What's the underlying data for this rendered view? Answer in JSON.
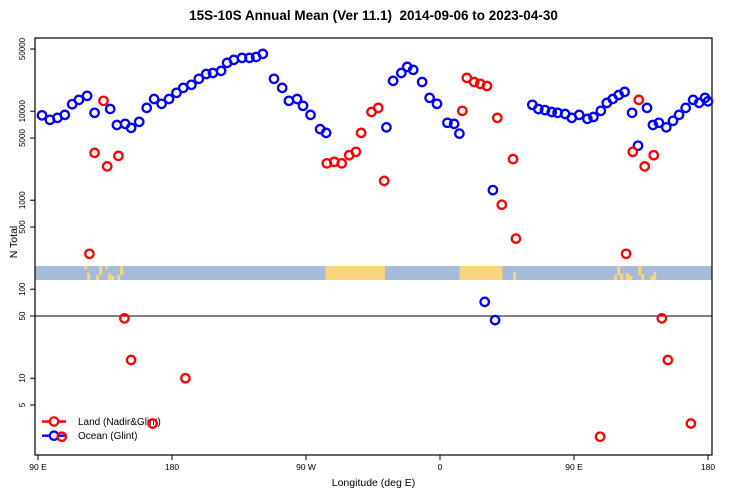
{
  "chart_data": {
    "type": "scatter",
    "title": "15S-10S Annual Mean (Ver 11.1)  2014-09-06 to 2023-04-30",
    "xlabel": "Longitude (deg E)",
    "ylabel": "N Total",
    "x_axis": {
      "description": "longitude axis spanning 450 degrees eastward starting at 90E",
      "range_deg": [
        0,
        450
      ],
      "ticks": [
        {
          "offset_deg": 0,
          "label": "90 E"
        },
        {
          "offset_deg": 90,
          "label": "180"
        },
        {
          "offset_deg": 180,
          "label": "90 W"
        },
        {
          "offset_deg": 270,
          "label": "0"
        },
        {
          "offset_deg": 360,
          "label": "90 E"
        },
        {
          "offset_deg": 450,
          "label": "180"
        }
      ]
    },
    "y_axis": {
      "scale": "log10",
      "tick_values": [
        5,
        10,
        50,
        100,
        500,
        1000,
        5000,
        10000,
        50000
      ],
      "tick_labels": [
        "5",
        "10",
        "50",
        "100",
        "500",
        "1000",
        "5000",
        "10000",
        "50000"
      ],
      "range": [
        1.3,
        65000
      ]
    },
    "reference_line": {
      "value": 50,
      "color": "#000000"
    },
    "land_ocean_strip": {
      "ocean_color": "#a5bbd9",
      "land_color": "#fbd47e",
      "value_band": [
        120,
        180
      ],
      "land_segments": [
        {
          "from_deg": 31,
          "to_deg": 56,
          "style": "patchy"
        },
        {
          "from_deg": 193,
          "to_deg": 233,
          "style": "solid"
        },
        {
          "from_deg": 283,
          "to_deg": 312,
          "style": "solid"
        },
        {
          "from_deg": 317,
          "to_deg": 320,
          "style": "patchy"
        },
        {
          "from_deg": 387,
          "to_deg": 418,
          "style": "patchy"
        }
      ]
    },
    "legend": {
      "position": "bottom-left",
      "entries": [
        {
          "label": "Land (Nadir&Glint)",
          "color": "#ff0000",
          "marker": "open-circle-on-line"
        },
        {
          "label": "Ocean (Glint)",
          "color": "#0000ff",
          "marker": "open-circle-on-line"
        }
      ]
    },
    "series": [
      {
        "name": "Land (Nadir&Glint)",
        "color": "#ff0000",
        "marker": "open-circle",
        "points": [
          [
            16,
            2.2
          ],
          [
            34.5,
            250
          ],
          [
            38,
            3400
          ],
          [
            44,
            13100
          ],
          [
            46.5,
            2400
          ],
          [
            54,
            3150
          ],
          [
            58,
            47
          ],
          [
            62.5,
            16
          ],
          [
            77,
            3.1
          ],
          [
            99,
            10
          ],
          [
            194,
            2600
          ],
          [
            199,
            2700
          ],
          [
            204,
            2600
          ],
          [
            209,
            3200
          ],
          [
            213.5,
            3500
          ],
          [
            217,
            5700
          ],
          [
            224,
            9800
          ],
          [
            228.5,
            10900
          ],
          [
            232.5,
            1650
          ],
          [
            285,
            10100
          ],
          [
            288,
            23700
          ],
          [
            293,
            21300
          ],
          [
            297,
            20300
          ],
          [
            301.5,
            19200
          ],
          [
            308.5,
            8400
          ],
          [
            311.5,
            890
          ],
          [
            319,
            2900
          ],
          [
            321,
            370
          ],
          [
            377.5,
            2.2
          ],
          [
            395,
            250
          ],
          [
            399.5,
            3500
          ],
          [
            403.5,
            13400
          ],
          [
            407.5,
            2400
          ],
          [
            413.5,
            3200
          ],
          [
            419,
            47
          ],
          [
            423,
            16
          ],
          [
            438.5,
            3.1
          ]
        ]
      },
      {
        "name": "Ocean (Glint)",
        "color": "#0000ff",
        "marker": "open-circle",
        "points": [
          [
            2.7,
            9000
          ],
          [
            8,
            8000
          ],
          [
            13,
            8400
          ],
          [
            18,
            9100
          ],
          [
            23,
            12000
          ],
          [
            27.5,
            13400
          ],
          [
            33,
            14900
          ],
          [
            38,
            9600
          ],
          [
            48.5,
            10600
          ],
          [
            53,
            7000
          ],
          [
            58.5,
            7200
          ],
          [
            62.5,
            6500
          ],
          [
            68,
            7600
          ],
          [
            73,
            10900
          ],
          [
            78,
            13700
          ],
          [
            83,
            12100
          ],
          [
            88,
            13700
          ],
          [
            93,
            16100
          ],
          [
            97.5,
            18300
          ],
          [
            103,
            19800
          ],
          [
            108,
            23100
          ],
          [
            113,
            26200
          ],
          [
            117.5,
            26900
          ],
          [
            123,
            28400
          ],
          [
            127,
            34900
          ],
          [
            131.5,
            37700
          ],
          [
            137,
            39700
          ],
          [
            142,
            39700
          ],
          [
            146.5,
            40700
          ],
          [
            151,
            44000
          ],
          [
            158.5,
            23100
          ],
          [
            164,
            18300
          ],
          [
            168.5,
            13100
          ],
          [
            174,
            13700
          ],
          [
            178,
            11500
          ],
          [
            183,
            9100
          ],
          [
            189.5,
            6300
          ],
          [
            193.5,
            5700
          ],
          [
            234,
            6600
          ],
          [
            238.5,
            21900
          ],
          [
            244,
            26900
          ],
          [
            248,
            31500
          ],
          [
            252,
            29100
          ],
          [
            258,
            21300
          ],
          [
            263,
            14100
          ],
          [
            268,
            12100
          ],
          [
            275,
            7400
          ],
          [
            279.5,
            7200
          ],
          [
            283,
            5600
          ],
          [
            300,
            72
          ],
          [
            305.5,
            1300
          ],
          [
            307,
            45
          ],
          [
            332,
            11800
          ],
          [
            336,
            10600
          ],
          [
            340.5,
            10300
          ],
          [
            345,
            9800
          ],
          [
            349,
            9600
          ],
          [
            354,
            9300
          ],
          [
            358.5,
            8400
          ],
          [
            363.5,
            9100
          ],
          [
            369,
            8200
          ],
          [
            373,
            8600
          ],
          [
            378,
            10100
          ],
          [
            382,
            12400
          ],
          [
            386,
            13700
          ],
          [
            390,
            15200
          ],
          [
            394,
            16500
          ],
          [
            399,
            9600
          ],
          [
            403,
            4100
          ],
          [
            409,
            10900
          ],
          [
            413,
            7000
          ],
          [
            417,
            7400
          ],
          [
            422,
            6600
          ],
          [
            426.5,
            7800
          ],
          [
            430.5,
            9100
          ],
          [
            435,
            10900
          ],
          [
            440,
            13400
          ],
          [
            444,
            12400
          ],
          [
            448,
            14100
          ],
          [
            450,
            12900
          ]
        ]
      }
    ]
  }
}
